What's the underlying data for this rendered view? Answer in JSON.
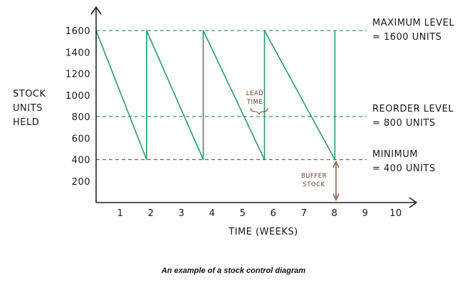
{
  "chart_data": {
    "type": "line",
    "xlabel": "TIME (WEEKS)",
    "ylabel": [
      "STOCK",
      "UNITS",
      "HELD"
    ],
    "x_ticks": [
      1,
      2,
      3,
      4,
      5,
      6,
      7,
      8,
      9,
      10
    ],
    "y_ticks": [
      200,
      400,
      600,
      800,
      1000,
      1200,
      1400,
      1600
    ],
    "xlim": [
      0,
      10.3
    ],
    "ylim": [
      0,
      1800
    ],
    "series": [
      {
        "values": [
          {
            "x": 0,
            "y": 1600
          },
          {
            "x": 1.65,
            "y": 400
          },
          {
            "x": 1.65,
            "y": 1600
          },
          {
            "x": 3.5,
            "y": 400
          },
          {
            "x": 3.5,
            "y": 1600
          },
          {
            "x": 5.5,
            "y": 400
          },
          {
            "x": 5.5,
            "y": 1600
          },
          {
            "x": 7.8,
            "y": 400
          },
          {
            "x": 7.8,
            "y": 1600
          }
        ]
      }
    ],
    "reference_lines": [
      {
        "y": 1600,
        "label": [
          "MAXIMUM LEVEL",
          "= 1600 UNITS"
        ],
        "color": "#2e9a6a"
      },
      {
        "y": 800,
        "label": [
          "REORDER LEVEL",
          "= 800 UNITS"
        ],
        "color": "#2e9a6a"
      },
      {
        "y": 400,
        "label": [
          "MINIMUM",
          "= 400 UNITS"
        ],
        "color": "#8a5a44"
      }
    ],
    "annotations": {
      "lead_time": [
        "LEAD",
        "TIME"
      ],
      "buffer_stock": [
        "BUFFER",
        "STOCK"
      ]
    },
    "colors": {
      "line": "#2e9a6a",
      "axis": "#222222",
      "buffer": "#8a4a2c",
      "minimum_line": "#8a5a44"
    }
  },
  "caption": "An example of a stock control diagram"
}
